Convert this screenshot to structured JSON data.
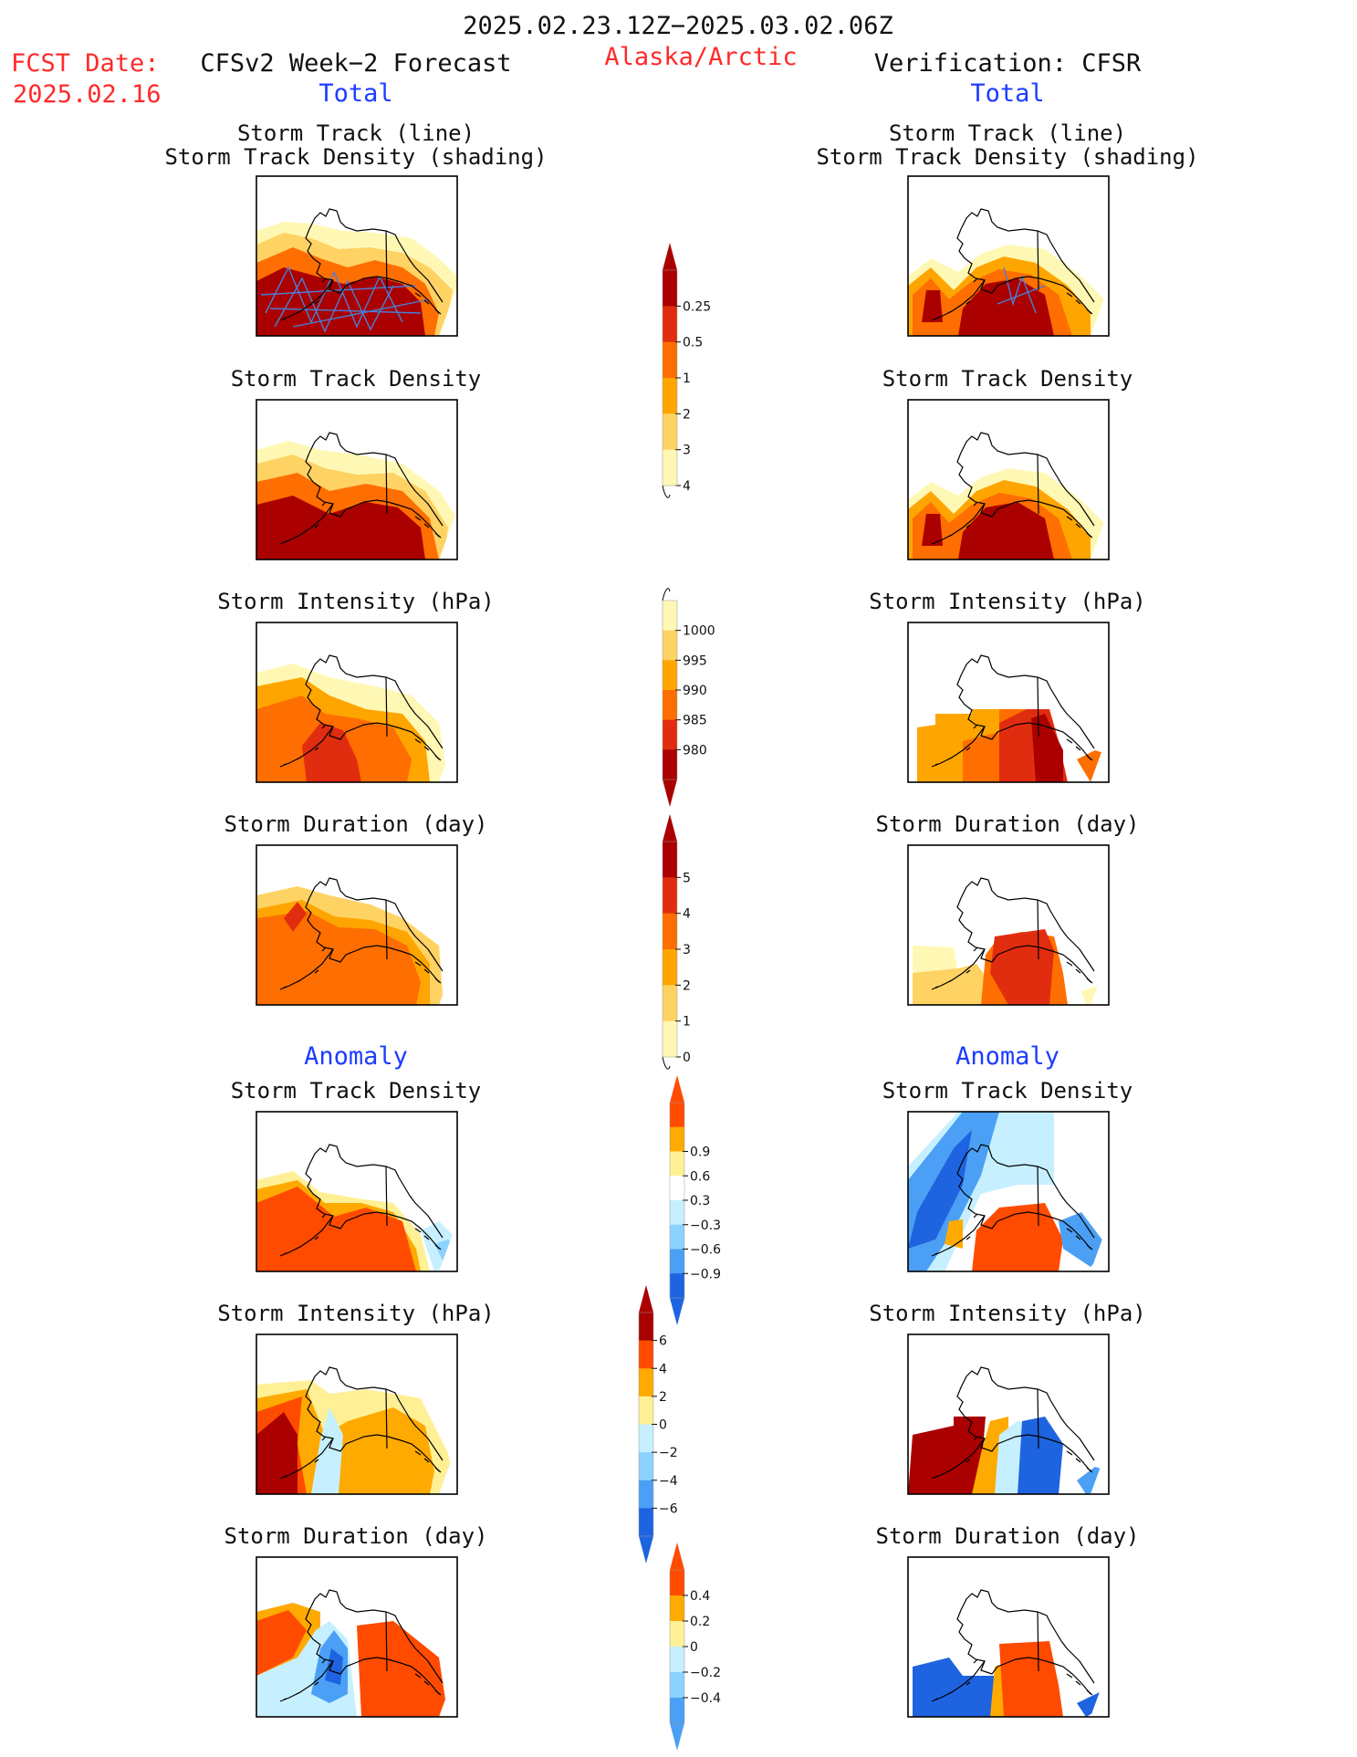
{
  "header": {
    "period": "2025.02.23.12Z−2025.03.02.06Z",
    "fcst_label": "FCST Date:",
    "fcst_date": "2025.02.16",
    "left_title": "CFSv2 Week−2 Forecast",
    "region": "Alaska/Arctic",
    "right_title": "Verification: CFSR",
    "total_left": "Total",
    "total_right": "Total",
    "anomaly_left": "Anomaly",
    "anomaly_right": "Anomaly"
  },
  "panel_titles": {
    "track_line": "Storm Track (line)",
    "track_shading": "Storm Track Density (shading)",
    "density": "Storm Track Density",
    "intensity": "Storm Intensity (hPa)",
    "duration": "Storm Duration (day)"
  },
  "colors": {
    "warm": [
      "#fff8b4",
      "#ffd264",
      "#ffa500",
      "#ff6e00",
      "#e12d0f",
      "#aa0000"
    ],
    "cool": [
      "#c6f0ff",
      "#8cd2ff",
      "#4ba0f5",
      "#1e64e1"
    ],
    "anom_warm": [
      "#fff096",
      "#ffaa00",
      "#ff4b00"
    ],
    "frame": "#000000",
    "track_line": "#4a7fd8"
  },
  "chart_data": [
    {
      "type": "heatmap",
      "name": "colorbar_density_total",
      "levels": [
        "0.25",
        "0.5",
        "1",
        "2",
        "3",
        "4"
      ],
      "unit": "storm track density",
      "used_by": [
        "Forecast Total Storm Track Density",
        "Verification Total Storm Track Density"
      ]
    },
    {
      "type": "heatmap",
      "name": "colorbar_intensity_total",
      "levels": [
        "1000",
        "995",
        "990",
        "985",
        "980"
      ],
      "unit": "hPa",
      "used_by": [
        "Forecast Total Storm Intensity",
        "Verification Total Storm Intensity"
      ]
    },
    {
      "type": "heatmap",
      "name": "colorbar_duration_total",
      "levels": [
        "5",
        "4",
        "3",
        "2",
        "1",
        "0"
      ],
      "unit": "day",
      "used_by": [
        "Forecast Total Storm Duration",
        "Verification Total Storm Duration"
      ]
    },
    {
      "type": "heatmap",
      "name": "colorbar_density_anomaly",
      "levels": [
        "0.9",
        "0.6",
        "0.3",
        "−0.3",
        "−0.6",
        "−0.9"
      ],
      "used_by": [
        "Forecast Anomaly Storm Track Density",
        "Verification Anomaly Storm Track Density"
      ]
    },
    {
      "type": "heatmap",
      "name": "colorbar_intensity_anomaly",
      "levels": [
        "6",
        "4",
        "2",
        "0",
        "−2",
        "−4",
        "−6"
      ],
      "unit": "hPa",
      "used_by": [
        "Forecast Anomaly Storm Intensity",
        "Verification Anomaly Storm Intensity"
      ]
    },
    {
      "type": "heatmap",
      "name": "colorbar_duration_anomaly",
      "levels": [
        "0.4",
        "0.2",
        "0",
        "−0.2",
        "−0.4"
      ],
      "unit": "day",
      "used_by": [
        "Forecast Anomaly Storm Duration",
        "Verification Anomaly Storm Duration"
      ]
    }
  ]
}
